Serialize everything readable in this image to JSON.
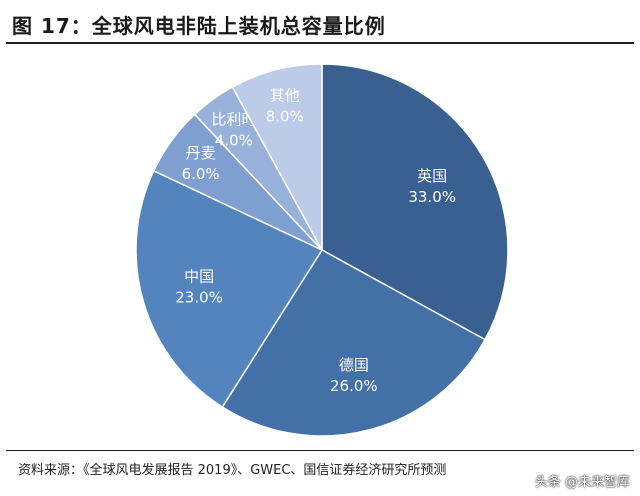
{
  "title": "图 17：全球风电非陆上装机总容量比例",
  "source": "资料来源：《全球风电发展报告 2019》、GWEC、国信证券经济研究所预测",
  "watermark": "头条 @未来智库",
  "chart_data": {
    "type": "pie",
    "unit": "%",
    "slices": [
      {
        "name": "英国",
        "value": 33.0,
        "label": "33.0%",
        "color": "#3a5f91"
      },
      {
        "name": "德国",
        "value": 26.0,
        "label": "26.0%",
        "color": "#4470a8"
      },
      {
        "name": "中国",
        "value": 23.0,
        "label": "23.0%",
        "color": "#5384bd"
      },
      {
        "name": "丹麦",
        "value": 6.0,
        "label": "6.0%",
        "color": "#7e9fcf"
      },
      {
        "name": "比利时",
        "value": 4.0,
        "label": "4.0%",
        "color": "#98b1da"
      },
      {
        "name": "其他",
        "value": 8.0,
        "label": "8.0%",
        "color": "#bccbe7"
      }
    ]
  }
}
